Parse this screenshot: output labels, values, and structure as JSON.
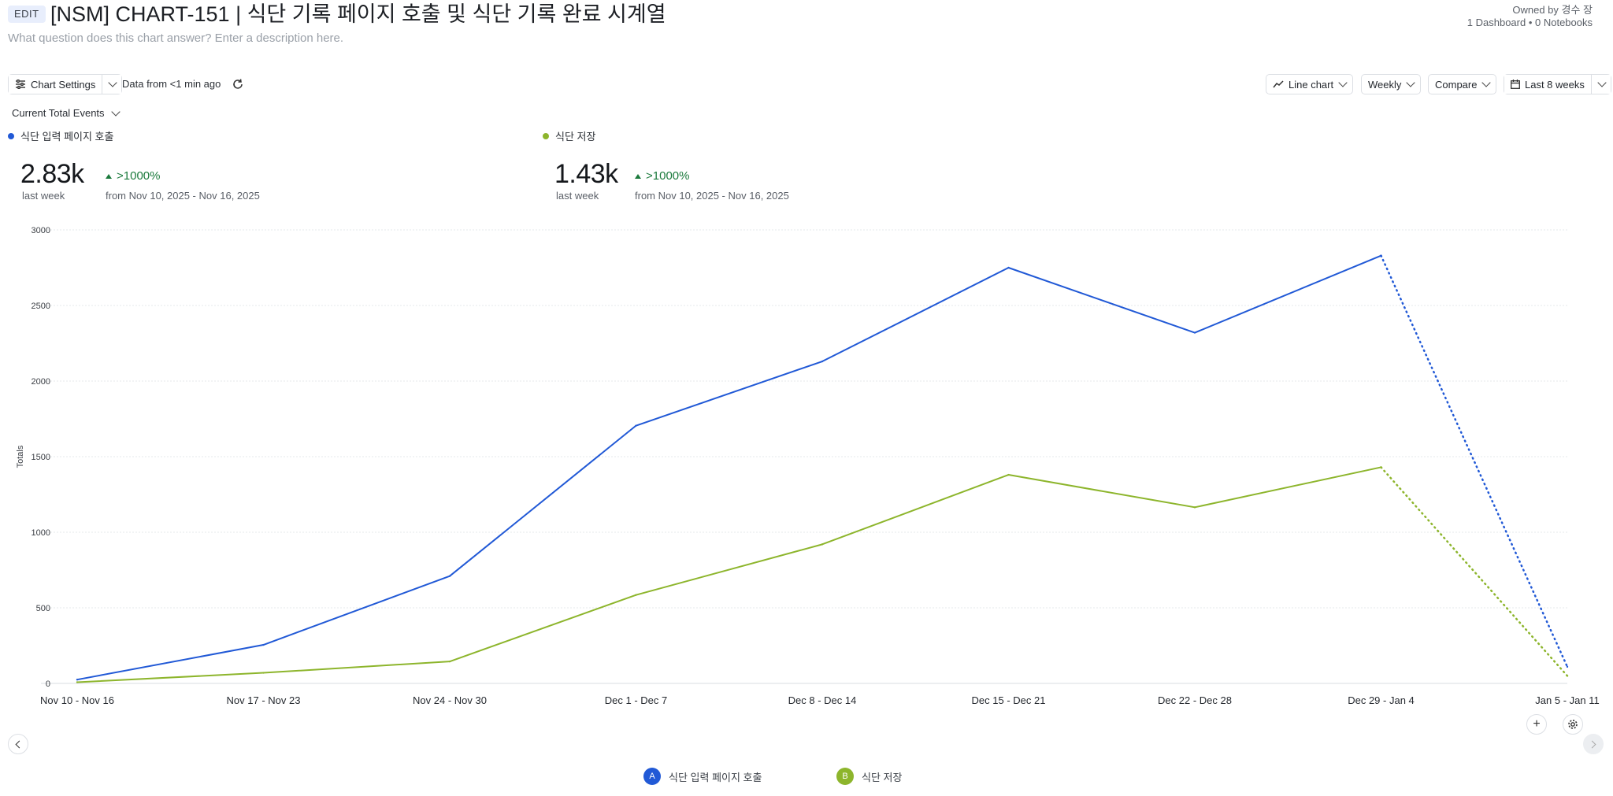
{
  "header": {
    "edit_label": "EDIT",
    "title": "[NSM] CHART-151 | 식단 기록 페이지 호출 및 식단 기록 완료 시계열",
    "description_placeholder": "What question does this chart answer? Enter a description here.",
    "owner": "Owned by 경수 장",
    "counts": "1 Dashboard • 0 Notebooks"
  },
  "toolbar": {
    "chart_settings": "Chart Settings",
    "data_from": "Data from <1 min ago",
    "chart_type": "Line chart",
    "interval": "Weekly",
    "compare": "Compare",
    "range": "Last 8 weeks",
    "metric_select": "Current Total Events"
  },
  "summary": [
    {
      "label": "식단 입력 페이지 호출",
      "value": "2.83k",
      "period": "last week",
      "change": ">1000%",
      "from": "from Nov 10, 2025 - Nov 16, 2025"
    },
    {
      "label": "식단 저장",
      "value": "1.43k",
      "period": "last week",
      "change": ">1000%",
      "from": "from Nov 10, 2025 - Nov 16, 2025"
    }
  ],
  "colors": {
    "blue": "#2159d6",
    "green": "#8db52c"
  },
  "chart_data": {
    "type": "line",
    "ylabel": "Totals",
    "ylim": [
      0,
      3000
    ],
    "yticks": [
      0,
      500,
      1000,
      1500,
      2000,
      2500,
      3000
    ],
    "categories": [
      "Nov 10 - Nov 16",
      "Nov 17 - Nov 23",
      "Nov 24 - Nov 30",
      "Dec 1 - Dec 7",
      "Dec 8 - Dec 14",
      "Dec 15 - Dec 21",
      "Dec 22 - Dec 28",
      "Dec 29 - Jan 4",
      "Jan 5 - Jan 11"
    ],
    "incomplete_from_index": 7,
    "grid": true,
    "series": [
      {
        "name": "식단 입력 페이지 호출",
        "letter": "A",
        "color": "#2159d6",
        "values": [
          25,
          255,
          710,
          1705,
          2130,
          2750,
          2320,
          2830,
          110
        ]
      },
      {
        "name": "식단 저장",
        "letter": "B",
        "color": "#8db52c",
        "values": [
          8,
          70,
          145,
          585,
          920,
          1380,
          1165,
          1430,
          50
        ]
      }
    ]
  }
}
